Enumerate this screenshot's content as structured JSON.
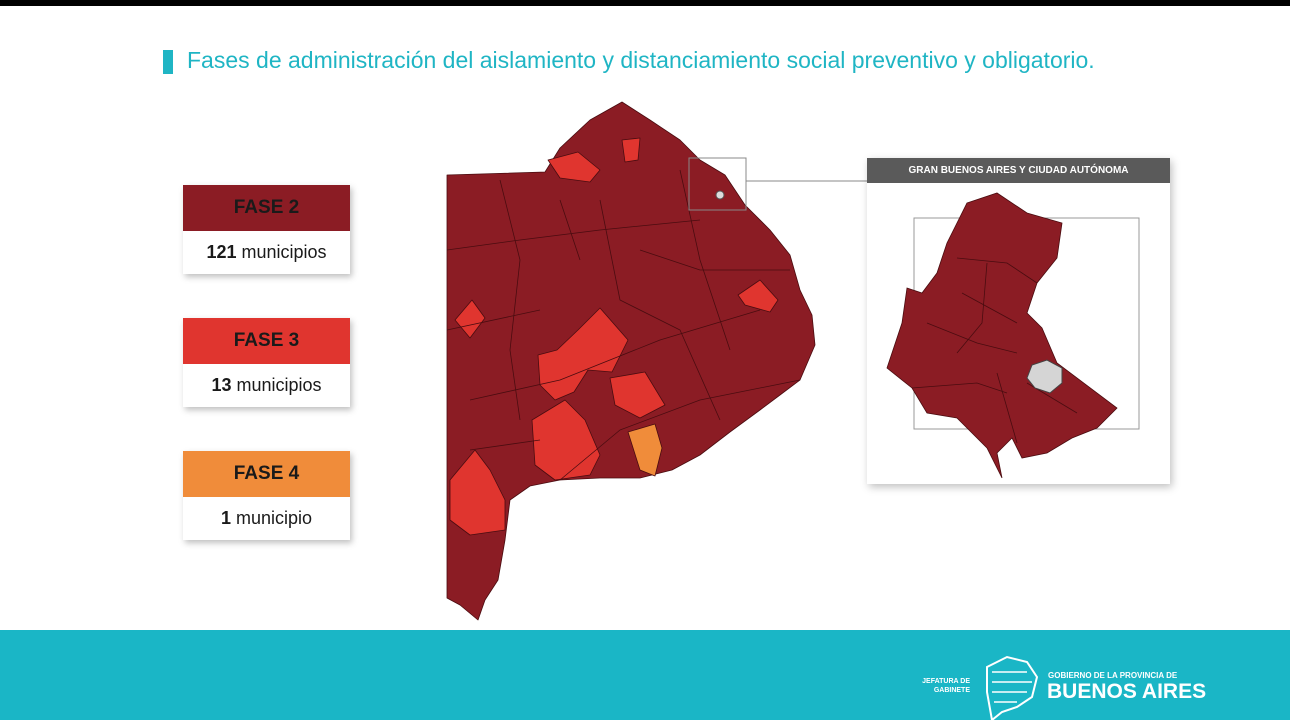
{
  "header": {
    "title": "Fases de administración del aislamiento y distanciamiento social preventivo y obligatorio."
  },
  "legend": [
    {
      "label": "FASE 2",
      "count": "121",
      "unit": "municipios",
      "color": "#8b1c24"
    },
    {
      "label": "FASE 3",
      "count": "13",
      "unit": "municipios",
      "color": "#e0352f"
    },
    {
      "label": "FASE 4",
      "count": "1",
      "unit": "municipio",
      "color": "#f08c3a"
    }
  ],
  "inset": {
    "title": "GRAN BUENOS AIRES Y CIUDAD AUTÓNOMA"
  },
  "footer": {
    "agency": "JEFATURA DE GABINETE",
    "government": "GOBIERNO DE LA PROVINCIA DE",
    "province": "BUENOS AIRES"
  }
}
